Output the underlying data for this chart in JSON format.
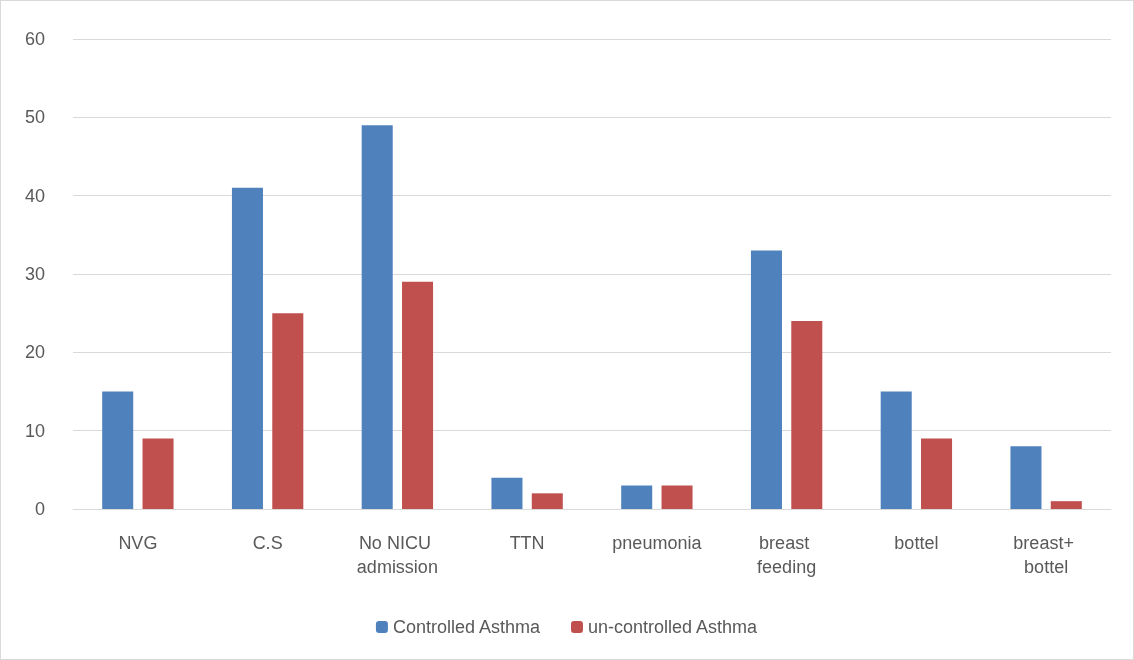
{
  "chart_data": {
    "type": "bar",
    "categories": [
      "NVG",
      "C.S",
      "No NICU admission",
      "TTN",
      "pneumonia",
      "breast feeding",
      "bottel",
      "breast+ bottel"
    ],
    "series": [
      {
        "name": "Controlled Asthma",
        "color": "#4f81bd",
        "values": [
          15,
          41,
          49,
          4,
          3,
          33,
          15,
          8
        ]
      },
      {
        "name": "un-controlled Asthma",
        "color": "#c0504d",
        "values": [
          9,
          25,
          29,
          2,
          3,
          24,
          9,
          1
        ]
      }
    ],
    "ylim": [
      0,
      60
    ],
    "yticks": [
      0,
      10,
      20,
      30,
      40,
      50,
      60
    ],
    "grid": "y",
    "legend": "bottom"
  }
}
